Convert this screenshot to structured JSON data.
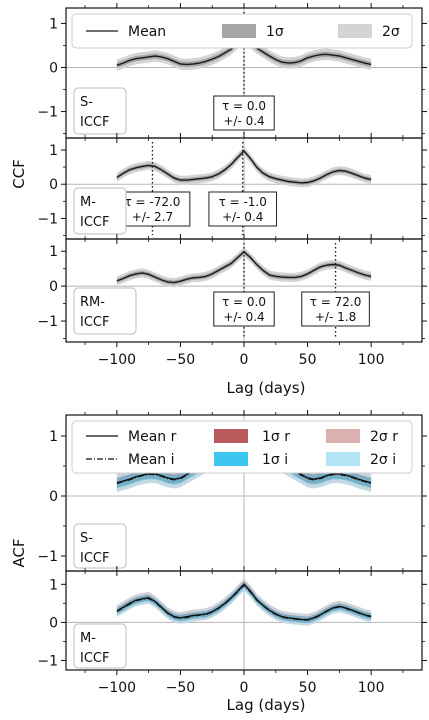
{
  "figure": {
    "ccf": {
      "ylabel": "CCF",
      "xlabel": "Lag (days)",
      "xlim": [
        -140,
        140
      ],
      "xticks": [
        "−100",
        "−50",
        "0",
        "50",
        "100"
      ],
      "xtick_values": [
        -100,
        -50,
        0,
        50,
        100
      ],
      "ylim": [
        -1.6,
        1.35
      ],
      "yticks": [
        "−1",
        "0",
        "1"
      ],
      "ytick_values": [
        -1,
        0,
        1
      ],
      "legend": {
        "mean": "Mean",
        "one_sigma": "1σ",
        "two_sigma": "2σ"
      },
      "colors": {
        "mean": "#1a1a1a",
        "one_sigma": "#a6a6a6",
        "two_sigma": "#d4d4d4",
        "annotation": "#111111"
      }
    },
    "acf": {
      "ylabel": "ACF",
      "xlabel": "Lag (days)",
      "xlim": [
        -140,
        140
      ],
      "xticks": [
        "−100",
        "−50",
        "0",
        "50",
        "100"
      ],
      "xtick_values": [
        -100,
        -50,
        0,
        50,
        100
      ],
      "ylim": [
        -1.25,
        1.35
      ],
      "yticks": [
        "−1",
        "0",
        "1"
      ],
      "ytick_values": [
        -1,
        0,
        1
      ],
      "legend": {
        "mean_r": "Mean r",
        "mean_i": "Mean i",
        "one_sigma_r": "1σ r",
        "two_sigma_r": "2σ r",
        "one_sigma_i": "1σ i",
        "two_sigma_i": "2σ i"
      },
      "colors": {
        "mean_r": "#111111",
        "mean_i": "#111111",
        "one_sigma_r": "#b85a5a",
        "two_sigma_r": "#dcb0b0",
        "one_sigma_i": "#3cc6f0",
        "two_sigma_i": "#b2e6f7"
      }
    }
  },
  "chart_data": [
    {
      "type": "line",
      "panel": "S-ICCF",
      "label": "S-\nICCF",
      "x": [
        -100,
        -95,
        -90,
        -85,
        -80,
        -75,
        -70,
        -65,
        -60,
        -55,
        -50,
        -45,
        -40,
        -35,
        -30,
        -25,
        -20,
        -15,
        -10,
        -5,
        0,
        5,
        10,
        15,
        20,
        25,
        30,
        35,
        40,
        45,
        50,
        55,
        60,
        65,
        70,
        75,
        80,
        85,
        90,
        95,
        100
      ],
      "y": [
        0.05,
        0.1,
        0.16,
        0.2,
        0.22,
        0.24,
        0.26,
        0.24,
        0.2,
        0.14,
        0.08,
        0.07,
        0.08,
        0.1,
        0.14,
        0.19,
        0.25,
        0.33,
        0.42,
        0.55,
        0.68,
        0.56,
        0.44,
        0.35,
        0.26,
        0.18,
        0.12,
        0.1,
        0.11,
        0.15,
        0.22,
        0.26,
        0.29,
        0.3,
        0.28,
        0.26,
        0.22,
        0.18,
        0.14,
        0.1,
        0.07
      ],
      "sigma1": 0.06,
      "sigma2": 0.13,
      "annotations": [
        {
          "tau": 0.0,
          "line1": "τ = 0.0",
          "line2": "+/- 0.4"
        }
      ]
    },
    {
      "type": "line",
      "panel": "M-ICCF",
      "label": "M-\nICCF",
      "x": [
        -100,
        -95,
        -90,
        -85,
        -80,
        -75,
        -70,
        -65,
        -60,
        -55,
        -50,
        -45,
        -40,
        -35,
        -30,
        -25,
        -20,
        -15,
        -10,
        -5,
        0,
        5,
        10,
        15,
        20,
        25,
        30,
        35,
        40,
        45,
        50,
        55,
        60,
        65,
        70,
        75,
        80,
        85,
        90,
        95,
        100
      ],
      "y": [
        0.2,
        0.32,
        0.42,
        0.48,
        0.52,
        0.55,
        0.52,
        0.42,
        0.3,
        0.18,
        0.12,
        0.12,
        0.14,
        0.16,
        0.18,
        0.22,
        0.3,
        0.42,
        0.58,
        0.78,
        0.97,
        0.75,
        0.5,
        0.32,
        0.22,
        0.16,
        0.12,
        0.08,
        0.06,
        0.04,
        0.05,
        0.1,
        0.18,
        0.28,
        0.36,
        0.4,
        0.38,
        0.32,
        0.25,
        0.18,
        0.14
      ],
      "sigma1": 0.06,
      "sigma2": 0.13,
      "annotations": [
        {
          "tau": -72.0,
          "line1": "τ = -72.0",
          "line2": "+/- 2.7"
        },
        {
          "tau": -1.0,
          "line1": "τ = -1.0",
          "line2": "+/- 0.4"
        }
      ]
    },
    {
      "type": "line",
      "panel": "RM-ICCF",
      "label": "RM-\nICCF",
      "x": [
        -100,
        -95,
        -90,
        -85,
        -80,
        -75,
        -70,
        -65,
        -60,
        -55,
        -50,
        -45,
        -40,
        -35,
        -30,
        -25,
        -20,
        -15,
        -10,
        -5,
        0,
        5,
        10,
        15,
        20,
        25,
        30,
        35,
        40,
        45,
        50,
        55,
        60,
        65,
        70,
        75,
        80,
        85,
        90,
        95,
        100
      ],
      "y": [
        0.15,
        0.22,
        0.3,
        0.35,
        0.38,
        0.34,
        0.26,
        0.18,
        0.12,
        0.1,
        0.14,
        0.2,
        0.24,
        0.25,
        0.28,
        0.35,
        0.45,
        0.55,
        0.65,
        0.82,
        0.98,
        0.82,
        0.62,
        0.45,
        0.32,
        0.28,
        0.26,
        0.25,
        0.25,
        0.28,
        0.35,
        0.45,
        0.55,
        0.6,
        0.62,
        0.6,
        0.52,
        0.45,
        0.38,
        0.32,
        0.28
      ],
      "sigma1": 0.06,
      "sigma2": 0.13,
      "annotations": [
        {
          "tau": 0.0,
          "line1": "τ = 0.0",
          "line2": "+/- 0.4"
        },
        {
          "tau": 72.0,
          "line1": "τ = 72.0",
          "line2": "+/- 1.8"
        }
      ]
    },
    {
      "type": "line",
      "panel": "S-ICCF ACF",
      "label": "S-\nICCF",
      "x": [
        -100,
        -95,
        -90,
        -85,
        -80,
        -75,
        -70,
        -65,
        -60,
        -55,
        -50,
        -45,
        -40,
        -35,
        -30,
        -25,
        -20,
        -15,
        -10,
        -5,
        0,
        5,
        10,
        15,
        20,
        25,
        30,
        35,
        40,
        45,
        50,
        55,
        60,
        65,
        70,
        75,
        80,
        85,
        90,
        95,
        100
      ],
      "series": [
        {
          "name": "Mean r",
          "values": [
            0.22,
            0.25,
            0.28,
            0.32,
            0.35,
            0.37,
            0.37,
            0.34,
            0.3,
            0.28,
            0.3,
            0.36,
            0.42,
            0.48,
            0.55,
            0.62,
            0.68,
            0.74,
            0.82,
            0.9,
            1.0,
            0.9,
            0.82,
            0.74,
            0.68,
            0.62,
            0.55,
            0.48,
            0.42,
            0.36,
            0.3,
            0.28,
            0.3,
            0.34,
            0.37,
            0.37,
            0.35,
            0.32,
            0.28,
            0.25,
            0.22
          ]
        },
        {
          "name": "Mean i",
          "values": [
            0.21,
            0.24,
            0.27,
            0.31,
            0.34,
            0.36,
            0.36,
            0.33,
            0.29,
            0.27,
            0.29,
            0.35,
            0.41,
            0.47,
            0.54,
            0.61,
            0.67,
            0.73,
            0.81,
            0.89,
            1.0,
            0.89,
            0.81,
            0.73,
            0.67,
            0.61,
            0.54,
            0.47,
            0.41,
            0.35,
            0.29,
            0.27,
            0.29,
            0.33,
            0.36,
            0.36,
            0.34,
            0.31,
            0.27,
            0.24,
            0.21
          ]
        }
      ],
      "sigma1": 0.08,
      "sigma2": 0.15
    },
    {
      "type": "line",
      "panel": "M-ICCF ACF",
      "label": "M-\nICCF",
      "x": [
        -100,
        -95,
        -90,
        -85,
        -80,
        -75,
        -70,
        -65,
        -60,
        -55,
        -50,
        -45,
        -40,
        -35,
        -30,
        -25,
        -20,
        -15,
        -10,
        -5,
        0,
        5,
        10,
        15,
        20,
        25,
        30,
        35,
        40,
        45,
        50,
        55,
        60,
        65,
        70,
        75,
        80,
        85,
        90,
        95,
        100
      ],
      "series": [
        {
          "name": "Mean r",
          "values": [
            0.3,
            0.4,
            0.5,
            0.58,
            0.62,
            0.65,
            0.55,
            0.4,
            0.25,
            0.15,
            0.12,
            0.15,
            0.18,
            0.2,
            0.22,
            0.28,
            0.38,
            0.5,
            0.65,
            0.82,
            1.0,
            0.82,
            0.6,
            0.45,
            0.32,
            0.22,
            0.15,
            0.12,
            0.1,
            0.08,
            0.07,
            0.12,
            0.2,
            0.3,
            0.38,
            0.42,
            0.38,
            0.32,
            0.26,
            0.2,
            0.16
          ]
        },
        {
          "name": "Mean i",
          "values": [
            0.29,
            0.38,
            0.48,
            0.57,
            0.61,
            0.63,
            0.54,
            0.39,
            0.24,
            0.14,
            0.11,
            0.13,
            0.17,
            0.19,
            0.21,
            0.27,
            0.37,
            0.49,
            0.64,
            0.8,
            0.98,
            0.8,
            0.59,
            0.44,
            0.31,
            0.21,
            0.14,
            0.11,
            0.09,
            0.07,
            0.06,
            0.11,
            0.19,
            0.29,
            0.37,
            0.41,
            0.37,
            0.31,
            0.25,
            0.19,
            0.15
          ]
        }
      ],
      "sigma1": 0.08,
      "sigma2": 0.15
    }
  ]
}
